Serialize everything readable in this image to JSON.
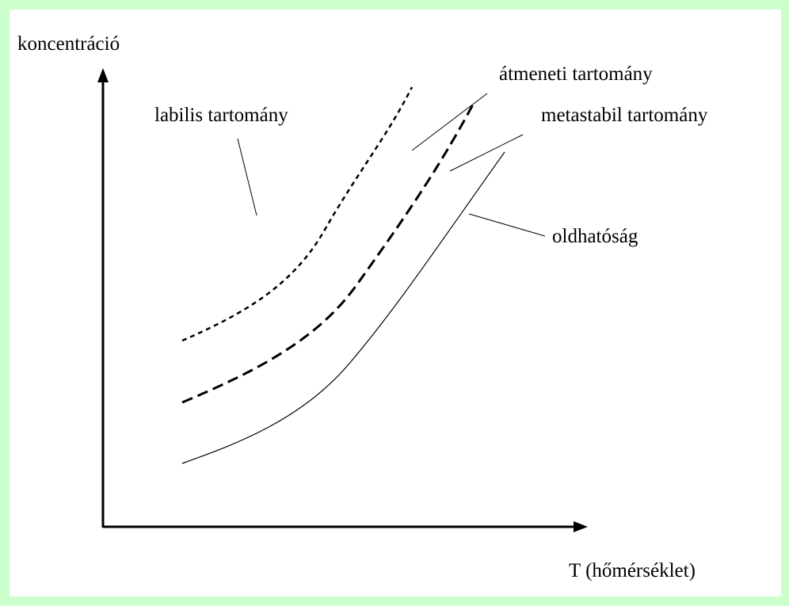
{
  "axes": {
    "y_label": "koncentráció",
    "x_label": "T (hőmérséklet)"
  },
  "regions": {
    "labile": "labilis tartomány",
    "transition": "átmeneti tartomány",
    "metastable": "metastabil tartomány",
    "solubility": "oldhatóság"
  }
}
